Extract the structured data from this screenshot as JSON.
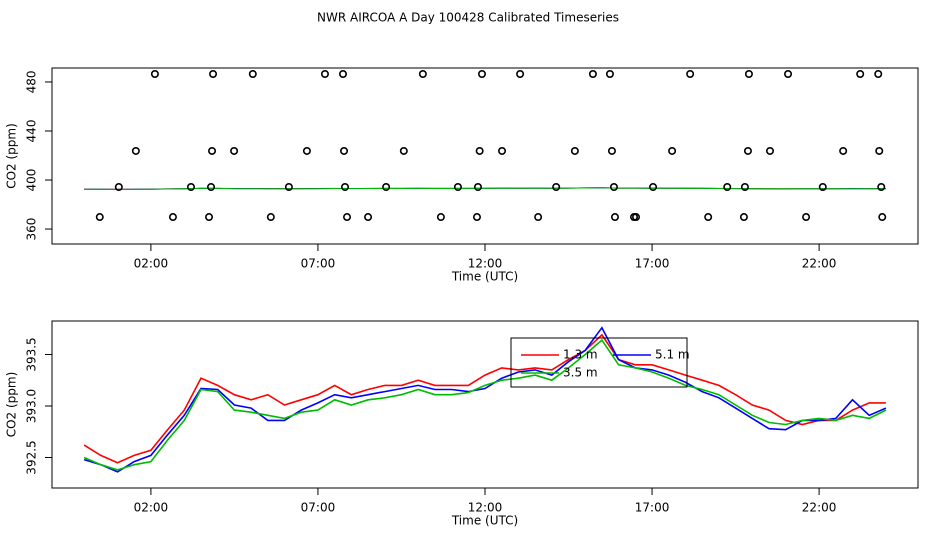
{
  "chart_data": [
    {
      "type": "scatter",
      "title": "NWR AIRCOA A  Day 100428  Calibrated Timeseries",
      "xlabel": "Time (UTC)",
      "ylabel": "CO2 (ppm)",
      "xlim": [
        -0.96,
        24.96
      ],
      "xticks": [
        {
          "value": 2,
          "label": "02:00"
        },
        {
          "value": 7,
          "label": "07:00"
        },
        {
          "value": 12,
          "label": "12:00"
        },
        {
          "value": 17,
          "label": "17:00"
        },
        {
          "value": 22,
          "label": "22:00"
        }
      ],
      "ylim": [
        347.8,
        491.4
      ],
      "yticks": [
        360,
        400,
        440,
        480
      ],
      "series": [
        {
          "color": "#000000",
          "x": [
            2.12,
            3.86,
            5.05,
            7.21,
            7.75,
            10.14,
            11.91,
            13.05,
            15.23,
            15.74,
            18.14,
            19.9,
            21.07,
            23.23,
            23.77,
            1.55,
            3.83,
            4.49,
            6.67,
            7.78,
            9.57,
            11.84,
            12.51,
            14.69,
            15.8,
            17.6,
            19.87,
            20.53,
            22.72,
            23.8,
            1.04,
            3.2,
            3.8,
            6.13,
            7.81,
            9.04,
            11.19,
            11.79,
            14.13,
            15.86,
            17.03,
            19.25,
            19.78,
            22.11,
            23.86,
            0.47,
            2.66,
            3.74,
            5.59,
            7.87,
            8.5,
            10.68,
            11.76,
            13.59,
            15.89,
            16.46,
            16.52,
            18.68,
            19.75,
            21.61,
            23.89
          ],
          "values": [
            486.5,
            486.5,
            486.5,
            486.5,
            486.5,
            486.5,
            486.5,
            486.5,
            486.5,
            486.5,
            486.5,
            486.5,
            486.5,
            486.5,
            486.5,
            423.7,
            423.7,
            423.7,
            423.7,
            423.7,
            423.7,
            423.7,
            423.7,
            423.7,
            423.7,
            423.7,
            423.7,
            423.7,
            423.7,
            423.7,
            394.3,
            394.3,
            394.3,
            394.3,
            394.3,
            394.3,
            394.3,
            394.3,
            394.3,
            394.3,
            394.3,
            394.3,
            394.3,
            394.3,
            394.3,
            369.8,
            369.8,
            369.8,
            369.8,
            369.8,
            369.8,
            369.8,
            369.8,
            369.8,
            369.8,
            369.8,
            369.8,
            369.8,
            369.8,
            369.8,
            369.8
          ]
        }
      ]
    },
    {
      "type": "line",
      "xlabel": "Time (UTC)",
      "ylabel": "CO2 (ppm)",
      "xlim": [
        -0.96,
        24.96
      ],
      "xticks": [
        {
          "value": 2,
          "label": "02:00"
        },
        {
          "value": 7,
          "label": "07:00"
        },
        {
          "value": 12,
          "label": "12:00"
        },
        {
          "value": 17,
          "label": "17:00"
        },
        {
          "value": 22,
          "label": "22:00"
        }
      ],
      "ylim": [
        392.204,
        393.825
      ],
      "yticks": [
        392.5,
        {
          "value": 393,
          "label": "393.0"
        },
        393.5
      ],
      "x": [
        0,
        0.5,
        1,
        1.5,
        2,
        2.5,
        3,
        3.5,
        4,
        4.5,
        5,
        5.5,
        6,
        6.5,
        7,
        7.5,
        8,
        8.5,
        9,
        9.5,
        10,
        10.5,
        11,
        11.5,
        12,
        12.5,
        13,
        13.5,
        14,
        14.5,
        15,
        15.5,
        16,
        16.5,
        17,
        17.5,
        18,
        18.5,
        19,
        19.5,
        20,
        20.5,
        21,
        21.5,
        22,
        22.5,
        23,
        23.5,
        24
      ],
      "series": [
        {
          "name": "1.3 m",
          "color": "#ff0000",
          "values": [
            392.62,
            392.52,
            392.45,
            392.52,
            392.57,
            392.77,
            392.96,
            393.27,
            393.2,
            393.11,
            393.06,
            393.11,
            393.01,
            393.06,
            393.11,
            393.2,
            393.11,
            393.16,
            393.2,
            393.2,
            393.25,
            393.2,
            393.2,
            393.2,
            393.3,
            393.37,
            393.35,
            393.37,
            393.35,
            393.45,
            393.54,
            393.69,
            393.45,
            393.4,
            393.4,
            393.35,
            393.3,
            393.25,
            393.2,
            393.11,
            393.01,
            392.96,
            392.86,
            392.82,
            392.86,
            392.86,
            392.96,
            393.03,
            393.03
          ]
        },
        {
          "name": "5.1 m",
          "color": "#0000ff",
          "values": [
            392.48,
            392.43,
            392.36,
            392.46,
            392.52,
            392.72,
            392.91,
            393.17,
            393.16,
            393.01,
            392.98,
            392.86,
            392.86,
            392.96,
            393.03,
            393.11,
            393.08,
            393.11,
            393.14,
            393.17,
            393.2,
            393.16,
            393.16,
            393.14,
            393.17,
            393.27,
            393.33,
            393.35,
            393.3,
            393.43,
            393.54,
            393.76,
            393.45,
            393.37,
            393.35,
            393.3,
            393.23,
            393.14,
            393.08,
            392.98,
            392.88,
            392.78,
            392.77,
            392.86,
            392.86,
            392.88,
            393.06,
            392.91,
            392.98
          ]
        },
        {
          "name": "3.5 m",
          "color": "#00bb00",
          "values": [
            392.5,
            392.43,
            392.38,
            392.43,
            392.46,
            392.67,
            392.86,
            393.16,
            393.14,
            392.96,
            392.94,
            392.91,
            392.88,
            392.94,
            392.96,
            393.06,
            393.01,
            393.06,
            393.08,
            393.11,
            393.16,
            393.11,
            393.11,
            393.13,
            393.2,
            393.25,
            393.27,
            393.3,
            393.25,
            393.37,
            393.5,
            393.64,
            393.4,
            393.37,
            393.33,
            393.27,
            393.2,
            393.16,
            393.11,
            393.01,
            392.91,
            392.84,
            392.82,
            392.86,
            392.88,
            392.86,
            392.91,
            392.88,
            392.96
          ]
        }
      ]
    }
  ]
}
